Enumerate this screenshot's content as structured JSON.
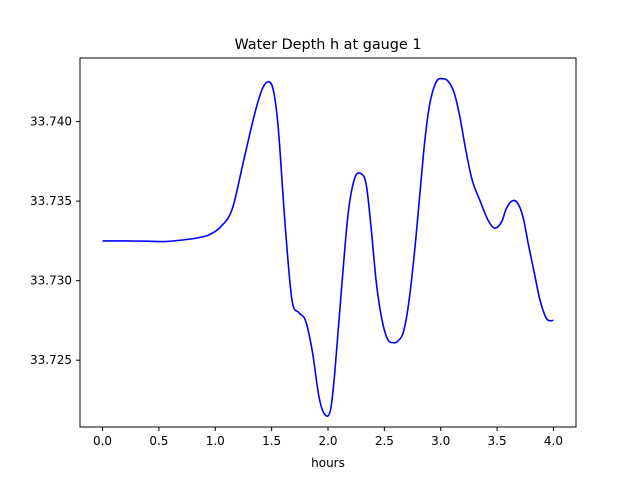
{
  "chart_data": {
    "type": "line",
    "title": "Water Depth h at gauge 1",
    "xlabel": "hours",
    "ylabel": "",
    "xlim": [
      -0.2,
      4.2
    ],
    "ylim": [
      33.7208,
      33.744
    ],
    "xticks": [
      0.0,
      0.5,
      1.0,
      1.5,
      2.0,
      2.5,
      3.0,
      3.5,
      4.0
    ],
    "xtick_labels": [
      "0.0",
      "0.5",
      "1.0",
      "1.5",
      "2.0",
      "2.5",
      "3.0",
      "3.5",
      "4.0"
    ],
    "yticks": [
      33.725,
      33.73,
      33.735,
      33.74
    ],
    "ytick_labels": [
      "33.725",
      "33.730",
      "33.735",
      "33.740"
    ],
    "grid": false,
    "series": [
      {
        "color": "#0000ff",
        "x": [
          0.0,
          0.2,
          0.4,
          0.55,
          0.7,
          0.85,
          0.95,
          1.05,
          1.15,
          1.25,
          1.35,
          1.42,
          1.48,
          1.52,
          1.56,
          1.62,
          1.68,
          1.74,
          1.8,
          1.86,
          1.92,
          1.97,
          2.02,
          2.06,
          2.12,
          2.18,
          2.24,
          2.3,
          2.34,
          2.38,
          2.43,
          2.48,
          2.53,
          2.58,
          2.62,
          2.67,
          2.72,
          2.78,
          2.85,
          2.9,
          2.96,
          3.02,
          3.07,
          3.12,
          3.17,
          3.22,
          3.28,
          3.35,
          3.42,
          3.48,
          3.54,
          3.58,
          3.63,
          3.68,
          3.73,
          3.78,
          3.83,
          3.88,
          3.94,
          4.0
        ],
        "y": [
          33.7325,
          33.7325,
          33.73248,
          33.73246,
          33.73255,
          33.7327,
          33.7329,
          33.7334,
          33.7345,
          33.7375,
          33.7405,
          33.7421,
          33.7425,
          33.7418,
          33.7395,
          33.7335,
          33.7288,
          33.728,
          33.7275,
          33.7256,
          33.7227,
          33.7216,
          33.7218,
          33.7242,
          33.7295,
          33.7343,
          33.7365,
          33.7367,
          33.736,
          33.7335,
          33.7298,
          33.7275,
          33.7263,
          33.7261,
          33.7262,
          33.7268,
          33.7288,
          33.7327,
          33.7382,
          33.741,
          33.7425,
          33.7427,
          33.7425,
          33.7418,
          33.7403,
          33.7383,
          33.7363,
          33.735,
          33.7338,
          33.7333,
          33.7337,
          33.7345,
          33.735,
          33.7349,
          33.734,
          33.7322,
          33.7305,
          33.7288,
          33.7276,
          33.7275
        ]
      }
    ]
  }
}
